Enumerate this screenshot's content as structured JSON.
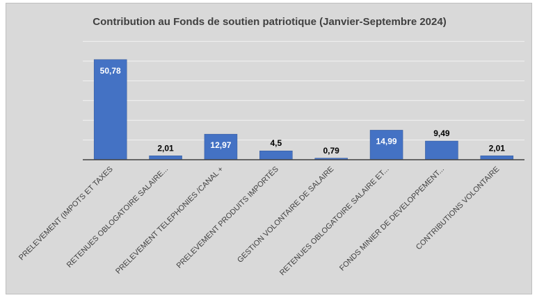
{
  "chart_data": {
    "type": "bar",
    "title": "Contribution au Fonds de soutien patriotique (Janvier-Septembre 2024)",
    "xlabel": "",
    "ylabel": "",
    "ylim": [
      0,
      60
    ],
    "grid": true,
    "legend": "none",
    "categories": [
      "PRELEVEMENT (IMPOTS ET TAXES",
      "RETENUES OBLOGATOIRE SALAIRE...",
      "PRELEVEMENT TELEPHONIES /CANAL +",
      "PRELEVEMENT PRODUITS IMPORTÉS",
      "GESTION VOLONTAIRE DE SALAIRE",
      "RETENUES OBLOGATOIRE SALAIRE ET...",
      "FONDS MINIER DE DEVELOPPEMENT...",
      "CONTRIBUTIONS VOLONTAIRE"
    ],
    "values": [
      50.78,
      2.01,
      12.97,
      4.5,
      0.79,
      14.99,
      9.49,
      2.01
    ],
    "data_labels": [
      "50,78",
      "2,01",
      "12,97",
      "4,5",
      "0,79",
      "14,99",
      "9,49",
      "2,01"
    ],
    "colors": {
      "bar": "#4472c4",
      "bar_edge": "#2f5597",
      "gridline": "#f2f2f2",
      "axis": "#404040",
      "label_inside": "#ffffff",
      "label_outside": "#000000"
    }
  }
}
